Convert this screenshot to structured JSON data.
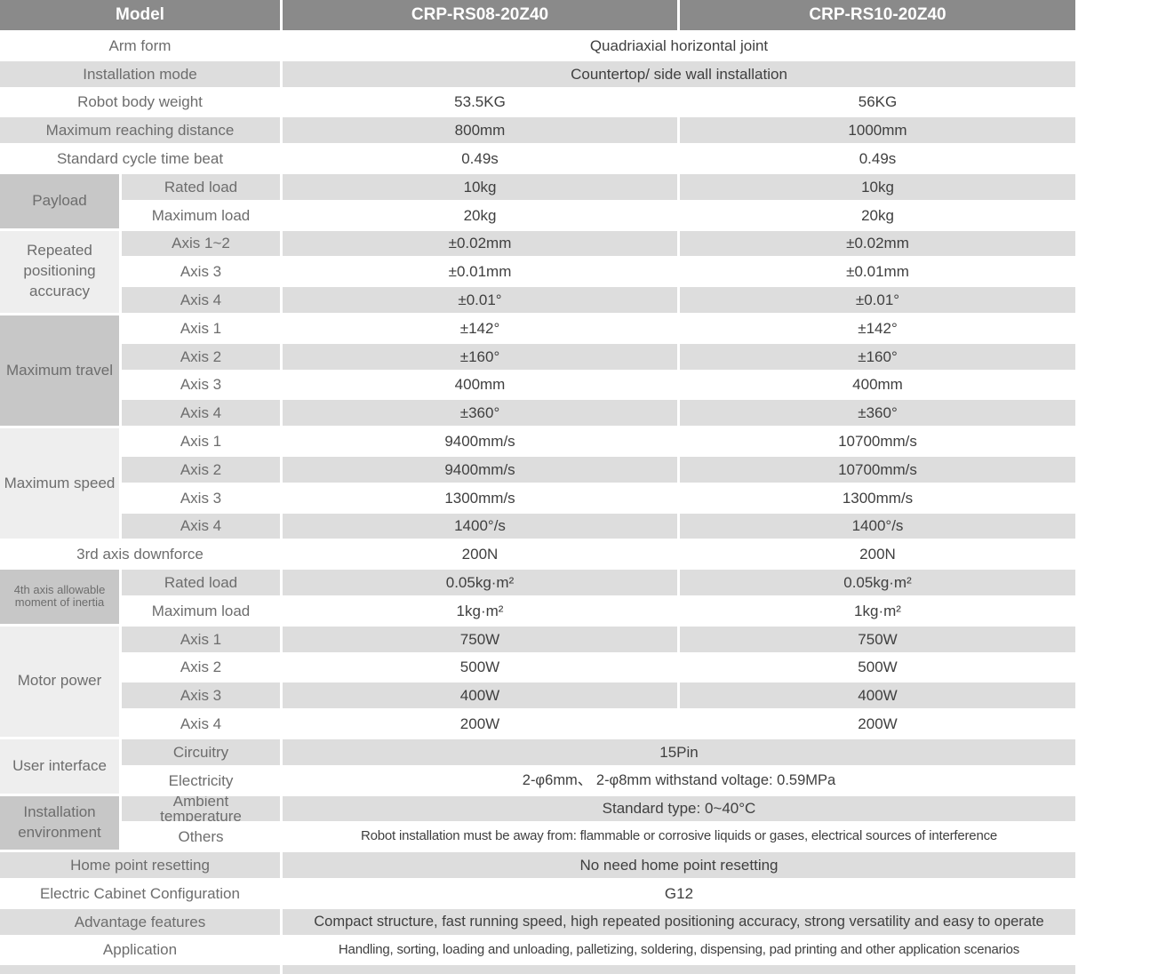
{
  "colors": {
    "header_bg": "#8a8a8a",
    "row_stripe": "#dddddd",
    "group_label_dark": "#c7c7c7",
    "group_label_light": "#eeeeee",
    "label_text": "#6d6d6d",
    "value_text": "#3f3f3f",
    "divider": "#ffffff"
  },
  "table": {
    "header": {
      "model_label": "Model",
      "models": [
        "CRP-RS08-20Z40",
        "CRP-RS10-20Z40"
      ]
    },
    "rows": [
      {
        "kind": "full",
        "label": "Arm form",
        "value": "Quadriaxial horizontal joint"
      },
      {
        "kind": "full",
        "label": "Installation mode",
        "value": "Countertop/ side wall installation"
      },
      {
        "kind": "split",
        "label": "Robot body weight",
        "values": [
          "53.5KG",
          "56KG"
        ]
      },
      {
        "kind": "split",
        "label": "Maximum reaching distance",
        "values": [
          "800mm",
          "1000mm"
        ]
      },
      {
        "kind": "split",
        "label": "Standard cycle time beat",
        "values": [
          "0.49s",
          "0.49s"
        ]
      },
      {
        "kind": "group",
        "label": "Payload",
        "shade": "dark",
        "subs": [
          {
            "sub": "Rated load",
            "values": [
              "10kg",
              "10kg"
            ]
          },
          {
            "sub": "Maximum load",
            "values": [
              "20kg",
              "20kg"
            ]
          }
        ]
      },
      {
        "kind": "group",
        "label": "Repeated positioning accuracy",
        "shade": "light",
        "subs": [
          {
            "sub": "Axis 1~2",
            "values": [
              "±0.02mm",
              "±0.02mm"
            ]
          },
          {
            "sub": "Axis 3",
            "values": [
              "±0.01mm",
              "±0.01mm"
            ]
          },
          {
            "sub": "Axis 4",
            "values": [
              "±0.01°",
              "±0.01°"
            ]
          }
        ]
      },
      {
        "kind": "group",
        "label": "Maximum travel",
        "shade": "dark",
        "subs": [
          {
            "sub": "Axis 1",
            "values": [
              "±142°",
              "±142°"
            ]
          },
          {
            "sub": "Axis 2",
            "values": [
              "±160°",
              "±160°"
            ]
          },
          {
            "sub": "Axis 3",
            "values": [
              "400mm",
              "400mm"
            ]
          },
          {
            "sub": "Axis 4",
            "values": [
              "±360°",
              "±360°"
            ]
          }
        ]
      },
      {
        "kind": "group",
        "label": "Maximum speed",
        "shade": "light",
        "subs": [
          {
            "sub": "Axis 1",
            "values": [
              "9400mm/s",
              "10700mm/s"
            ]
          },
          {
            "sub": "Axis 2",
            "values": [
              "9400mm/s",
              "10700mm/s"
            ]
          },
          {
            "sub": "Axis 3",
            "values": [
              "1300mm/s",
              "1300mm/s"
            ]
          },
          {
            "sub": "Axis 4",
            "values": [
              "1400°/s",
              "1400°/s"
            ]
          }
        ]
      },
      {
        "kind": "split",
        "label": "3rd axis downforce",
        "values": [
          "200N",
          "200N"
        ]
      },
      {
        "kind": "group",
        "label": "4th axis allowable moment of inertia",
        "shade": "dark",
        "small": true,
        "subs": [
          {
            "sub": "Rated load",
            "values": [
              "0.05kg·m²",
              "0.05kg·m²"
            ]
          },
          {
            "sub": "Maximum load",
            "values": [
              "1kg·m²",
              "1kg·m²"
            ]
          }
        ]
      },
      {
        "kind": "group",
        "label": "Motor power",
        "shade": "light",
        "subs": [
          {
            "sub": "Axis 1",
            "values": [
              "750W",
              "750W"
            ]
          },
          {
            "sub": "Axis 2",
            "values": [
              "500W",
              "500W"
            ]
          },
          {
            "sub": "Axis 3",
            "values": [
              "400W",
              "400W"
            ]
          },
          {
            "sub": "Axis 4",
            "values": [
              "200W",
              "200W"
            ]
          }
        ]
      },
      {
        "kind": "group",
        "label": "User interface",
        "shade": "light",
        "subs": [
          {
            "sub": "Circuitry",
            "value": "15Pin"
          },
          {
            "sub": "Electricity",
            "value": "2-φ6mm、 2-φ8mm withstand voltage: 0.59MPa",
            "style": "semi"
          }
        ]
      },
      {
        "kind": "group",
        "label": "Installation environment",
        "shade": "dark",
        "subs": [
          {
            "sub": "Ambient\ntemperature",
            "subPre": true,
            "value": "Standard type:  0~40°C"
          },
          {
            "sub": "Others",
            "value": "Robot installation must be away from: flammable or corrosive liquids or gases, electrical sources of interference",
            "style": "condensed"
          }
        ]
      },
      {
        "kind": "full",
        "label": "Home point resetting",
        "value": "No need home point resetting"
      },
      {
        "kind": "full",
        "label": "Electric Cabinet Configuration",
        "value": "G12"
      },
      {
        "kind": "full",
        "label": "Advantage features",
        "value": "Compact structure, fast running speed, high repeated positioning accuracy, strong versatility and easy to operate",
        "style": "semi"
      },
      {
        "kind": "full",
        "label": "Application",
        "value": "Handling, sorting, loading and unloading, palletizing, soldering, dispensing, pad printing and other application scenarios",
        "style": "condensed"
      }
    ]
  }
}
